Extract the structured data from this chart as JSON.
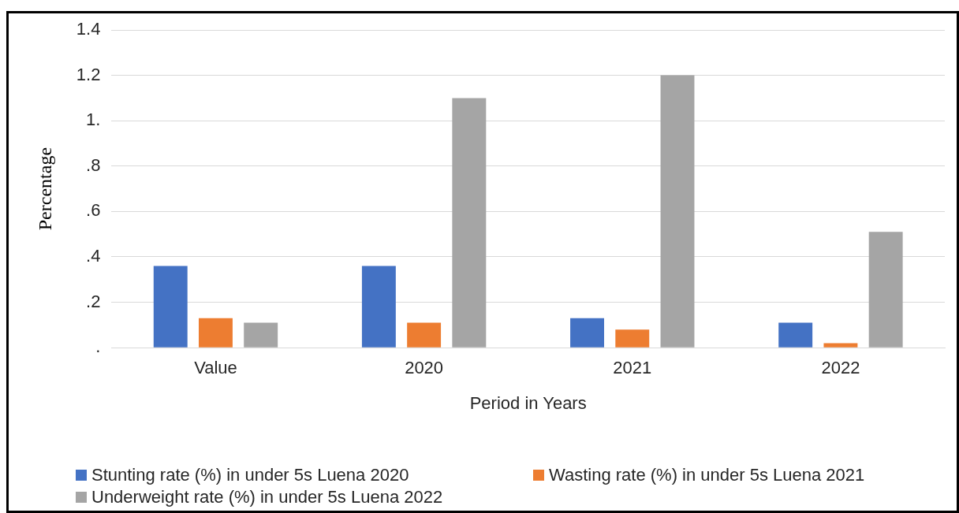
{
  "chart_data": {
    "type": "bar",
    "xlabel": "Period in Years",
    "ylabel": "Percentage",
    "categories": [
      "Value",
      "2020",
      "2021",
      "2022"
    ],
    "series": [
      {
        "name": "Stunting rate (%) in under 5s Luena 2020",
        "color": "#4472c4",
        "values": [
          0.36,
          0.36,
          0.13,
          0.11
        ]
      },
      {
        "name": "Wasting rate (%) in under 5s Luena 2021",
        "color": "#ed7d31",
        "values": [
          0.13,
          0.11,
          0.08,
          0.02
        ]
      },
      {
        "name": "Underweight rate (%) in under 5s Luena 2022",
        "color": "#a5a5a5",
        "values": [
          0.11,
          1.1,
          1.2,
          0.51
        ]
      }
    ],
    "ylim": [
      0,
      1.4
    ],
    "yticks": [
      {
        "value": 0,
        "label": "."
      },
      {
        "value": 0.2,
        "label": ".2"
      },
      {
        "value": 0.4,
        "label": ".4"
      },
      {
        "value": 0.6,
        "label": ".6"
      },
      {
        "value": 0.8,
        "label": ".8"
      },
      {
        "value": 1,
        "label": "1."
      },
      {
        "value": 1.2,
        "label": "1.2"
      },
      {
        "value": 1.4,
        "label": "1.4"
      }
    ],
    "grid": "y",
    "legend": "bottom"
  }
}
